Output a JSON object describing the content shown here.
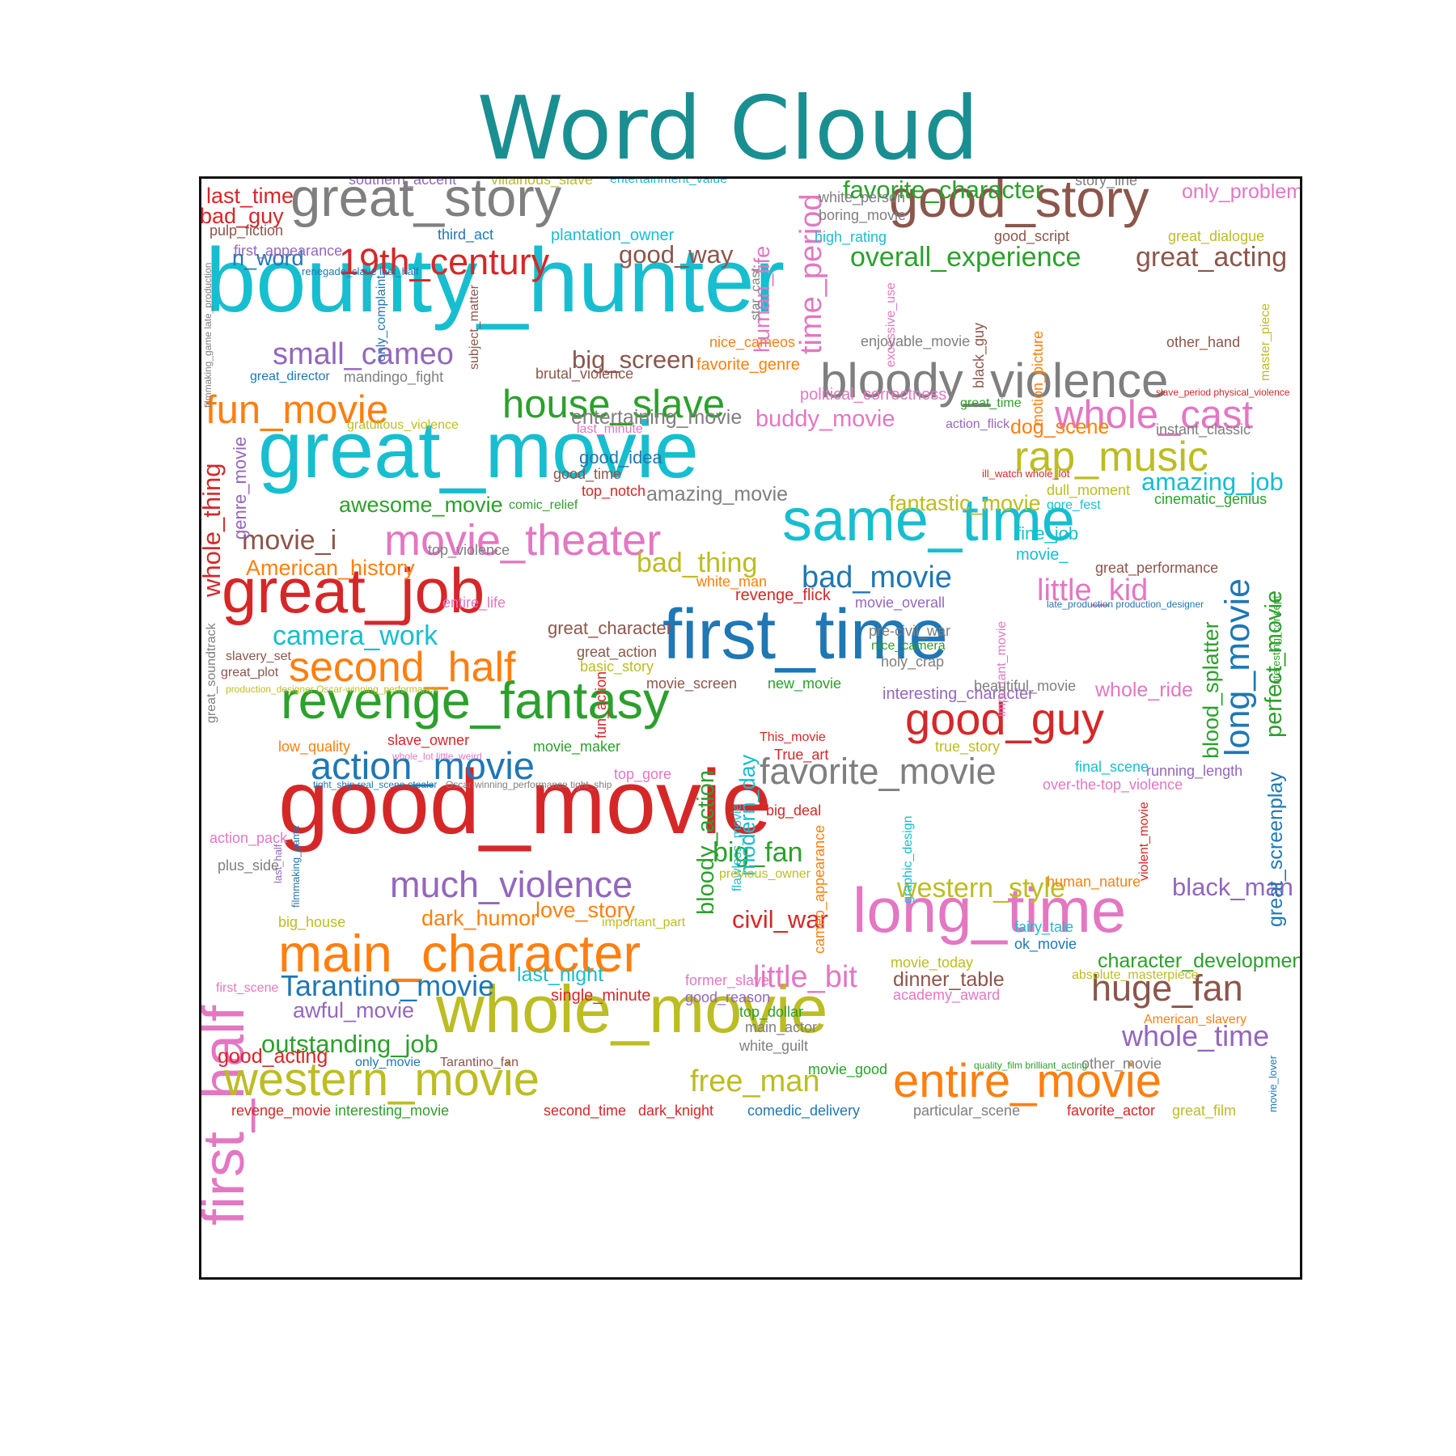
{
  "title": "Word Cloud",
  "palette": {
    "red": "#d62728",
    "blue": "#1f77b4",
    "cyan": "#17becf",
    "olive": "#bcbd22",
    "green": "#2ca02c",
    "orange": "#ff7f0e",
    "pink": "#e377c2",
    "purple": "#9467bd",
    "brown": "#8c564b",
    "gray": "#7f7f7f",
    "teal": "#1a8f91"
  },
  "words": [
    {
      "text": "bounty_hunter",
      "size": 100,
      "color": "cyan"
    },
    {
      "text": "good_movie",
      "size": 100,
      "color": "red"
    },
    {
      "text": "great_movie",
      "size": 88,
      "color": "cyan"
    },
    {
      "text": "first_time",
      "size": 78,
      "color": "blue"
    },
    {
      "text": "whole_movie",
      "size": 74,
      "color": "olive"
    },
    {
      "text": "great_job",
      "size": 70,
      "color": "red"
    },
    {
      "text": "long_time",
      "size": 70,
      "color": "pink"
    },
    {
      "text": "same_time",
      "size": 66,
      "color": "cyan"
    },
    {
      "text": "first_half",
      "size": 64,
      "color": "pink",
      "vertical": true
    },
    {
      "text": "great_story",
      "size": 60,
      "color": "gray"
    },
    {
      "text": "good_story",
      "size": 58,
      "color": "brown"
    },
    {
      "text": "revenge_fantasy",
      "size": 58,
      "color": "green"
    },
    {
      "text": "main_character",
      "size": 58,
      "color": "orange"
    },
    {
      "text": "bloody_violence",
      "size": 54,
      "color": "gray"
    },
    {
      "text": "western_movie",
      "size": 52,
      "color": "olive"
    },
    {
      "text": "entire_movie",
      "size": 52,
      "color": "orange"
    },
    {
      "text": "good_guy",
      "size": 50,
      "color": "red"
    },
    {
      "text": "movie_theater",
      "size": 48,
      "color": "pink"
    },
    {
      "text": "second_half",
      "size": 46,
      "color": "orange"
    },
    {
      "text": "rap_music",
      "size": 46,
      "color": "olive"
    },
    {
      "text": "house_slave",
      "size": 44,
      "color": "green"
    },
    {
      "text": "fun_movie",
      "size": 44,
      "color": "orange"
    },
    {
      "text": "whole_cast",
      "size": 44,
      "color": "pink"
    },
    {
      "text": "action_movie",
      "size": 42,
      "color": "blue"
    },
    {
      "text": "favorite_movie",
      "size": 40,
      "color": "gray"
    },
    {
      "text": "huge_fan",
      "size": 40,
      "color": "brown"
    },
    {
      "text": "much_violence",
      "size": 40,
      "color": "purple"
    },
    {
      "text": "19th_century",
      "size": 40,
      "color": "red"
    },
    {
      "text": "long_movie",
      "size": 38,
      "color": "blue",
      "vertical": true
    },
    {
      "text": "time_period",
      "size": 34,
      "color": "pink",
      "vertical": true
    },
    {
      "text": "small_cameo",
      "size": 34,
      "color": "purple"
    },
    {
      "text": "free_man",
      "size": 34,
      "color": "olive"
    },
    {
      "text": "little_bit",
      "size": 34,
      "color": "pink"
    },
    {
      "text": "little_kid",
      "size": 34,
      "color": "pink"
    },
    {
      "text": "bad_movie",
      "size": 34,
      "color": "blue"
    },
    {
      "text": "whole_time",
      "size": 32,
      "color": "purple"
    },
    {
      "text": "Tarantino_movie",
      "size": 32,
      "color": "blue"
    },
    {
      "text": "western_style",
      "size": 30,
      "color": "olive"
    },
    {
      "text": "camera_work",
      "size": 30,
      "color": "cyan"
    },
    {
      "text": "overall_experience",
      "size": 30,
      "color": "green"
    },
    {
      "text": "great_acting",
      "size": 30,
      "color": "brown"
    },
    {
      "text": "bad_thing",
      "size": 30,
      "color": "olive"
    },
    {
      "text": "big_fan",
      "size": 30,
      "color": "green"
    },
    {
      "text": "civil_war",
      "size": 28,
      "color": "red"
    },
    {
      "text": "black_man",
      "size": 28,
      "color": "purple"
    },
    {
      "text": "movie_i",
      "size": 30,
      "color": "brown"
    },
    {
      "text": "whole_thing",
      "size": 28,
      "color": "red",
      "vertical": true
    },
    {
      "text": "perfect_movie",
      "size": 26,
      "color": "green",
      "vertical": true
    },
    {
      "text": "outstanding_job",
      "size": 28,
      "color": "green"
    },
    {
      "text": "big_screen",
      "size": 28,
      "color": "brown"
    },
    {
      "text": "good_way",
      "size": 28,
      "color": "brown"
    },
    {
      "text": "favorite_character",
      "size": 28,
      "color": "green"
    },
    {
      "text": "bloody_action",
      "size": 26,
      "color": "green",
      "vertical": true
    },
    {
      "text": "blood_splatter",
      "size": 24,
      "color": "green",
      "vertical": true
    },
    {
      "text": "human_life",
      "size": 24,
      "color": "pink",
      "vertical": true
    },
    {
      "text": "modern_day",
      "size": 24,
      "color": "cyan",
      "vertical": true
    },
    {
      "text": "great_screenplay",
      "size": 22,
      "color": "blue",
      "vertical": true
    },
    {
      "text": "amazing_job",
      "size": 28,
      "color": "cyan"
    },
    {
      "text": "dark_humor",
      "size": 24,
      "color": "orange"
    },
    {
      "text": "love_story",
      "size": 24,
      "color": "orange"
    },
    {
      "text": "awful_movie",
      "size": 24,
      "color": "purple"
    },
    {
      "text": "awesome_movie",
      "size": 24,
      "color": "green"
    },
    {
      "text": "buddy_movie",
      "size": 26,
      "color": "pink"
    },
    {
      "text": "fantastic_movie",
      "size": 24,
      "color": "olive"
    },
    {
      "text": "American_history",
      "size": 24,
      "color": "orange"
    },
    {
      "text": "character_development",
      "size": 22,
      "color": "green"
    },
    {
      "text": "good_acting",
      "size": 22,
      "color": "red"
    },
    {
      "text": "n_word",
      "size": 24,
      "color": "blue"
    },
    {
      "text": "last_time",
      "size": 24,
      "color": "red"
    },
    {
      "text": "bad_guy",
      "size": 24,
      "color": "red"
    },
    {
      "text": "last_night",
      "size": 22,
      "color": "cyan"
    },
    {
      "text": "entertaining_movie",
      "size": 22,
      "color": "gray"
    },
    {
      "text": "dinner_table",
      "size": 22,
      "color": "brown"
    },
    {
      "text": "only_problem",
      "size": 22,
      "color": "pink"
    },
    {
      "text": "whole_ride",
      "size": 22,
      "color": "pink"
    },
    {
      "text": "dog_scene",
      "size": 22,
      "color": "orange"
    },
    {
      "text": "good_idea",
      "size": 20,
      "color": "blue"
    },
    {
      "text": "great_character",
      "size": 20,
      "color": "brown"
    },
    {
      "text": "amazing_movie",
      "size": 22,
      "color": "gray"
    },
    {
      "text": "single_minute",
      "size": 18,
      "color": "red"
    },
    {
      "text": "genre_movie",
      "size": 20,
      "color": "purple",
      "vertical": true
    },
    {
      "text": "house_slave",
      "size": 18,
      "color": "green",
      "hidden": true
    },
    {
      "text": "fine_job",
      "size": 20,
      "color": "cyan"
    },
    {
      "text": "favorite_genre",
      "size": 18,
      "color": "orange"
    },
    {
      "text": "political_correctness",
      "size": 18,
      "color": "pink"
    },
    {
      "text": "interesting_character",
      "size": 18,
      "color": "purple"
    },
    {
      "text": "cameo_appearance",
      "size": 16,
      "color": "orange",
      "vertical": true
    },
    {
      "text": "revenge_flick",
      "size": 18,
      "color": "red"
    },
    {
      "text": "top_notch",
      "size": 16,
      "color": "red"
    },
    {
      "text": "story_line",
      "size": 16,
      "color": "gray"
    },
    {
      "text": "white_person",
      "size": 16,
      "color": "gray"
    },
    {
      "text": "boring_movie",
      "size": 16,
      "color": "gray"
    },
    {
      "text": "great_time",
      "size": 14,
      "color": "green"
    },
    {
      "text": "fun_action",
      "size": 16,
      "color": "red",
      "vertical": true
    },
    {
      "text": "graphic_design",
      "size": 14,
      "color": "cyan",
      "vertical": true
    },
    {
      "text": "violent_movie",
      "size": 14,
      "color": "red",
      "vertical": true
    },
    {
      "text": "high_rating",
      "size": 16,
      "color": "cyan"
    },
    {
      "text": "third_act",
      "size": 16,
      "color": "blue"
    },
    {
      "text": "plantation_owner",
      "size": 18,
      "color": "cyan"
    },
    {
      "text": "southern_accent",
      "size": 16,
      "color": "purple"
    },
    {
      "text": "villainous_slave",
      "size": 16,
      "color": "olive"
    },
    {
      "text": "entertainment_value",
      "size": 14,
      "color": "cyan"
    },
    {
      "text": "good_script",
      "size": 16,
      "color": "brown"
    },
    {
      "text": "great_dialogue",
      "size": 16,
      "color": "olive"
    },
    {
      "text": "pulp_fiction",
      "size": 16,
      "color": "brown"
    },
    {
      "text": "first_appearance",
      "size": 16,
      "color": "purple"
    },
    {
      "text": "renegade_slave last_half",
      "size": 12,
      "color": "blue"
    },
    {
      "text": "filmmaking_game late_production",
      "size": 11,
      "color": "gray",
      "vertical": true
    },
    {
      "text": "only_complaint",
      "size": 14,
      "color": "blue",
      "vertical": true
    },
    {
      "text": "subject_matter",
      "size": 14,
      "color": "brown",
      "vertical": true
    },
    {
      "text": "star_cast",
      "size": 14,
      "color": "gray",
      "vertical": true
    },
    {
      "text": "excessive_use",
      "size": 14,
      "color": "pink",
      "vertical": true
    },
    {
      "text": "black_guy",
      "size": 16,
      "color": "brown",
      "vertical": true
    },
    {
      "text": "motion_picture",
      "size": 16,
      "color": "orange",
      "vertical": true
    },
    {
      "text": "master_piece",
      "size": 14,
      "color": "olive",
      "vertical": true
    },
    {
      "text": "nice_cameos",
      "size": 16,
      "color": "orange"
    },
    {
      "text": "enjoyable_movie",
      "size": 16,
      "color": "gray"
    },
    {
      "text": "other_hand",
      "size": 16,
      "color": "brown"
    },
    {
      "text": "great_director",
      "size": 14,
      "color": "blue"
    },
    {
      "text": "mandingo_fight",
      "size": 16,
      "color": "gray"
    },
    {
      "text": "brutal_violence",
      "size": 16,
      "color": "brown"
    },
    {
      "text": "slave_period physical_violence",
      "size": 11,
      "color": "red"
    },
    {
      "text": "gratuitous_violence",
      "size": 14,
      "color": "olive"
    },
    {
      "text": "action_flick",
      "size": 14,
      "color": "purple"
    },
    {
      "text": "last_minute",
      "size": 14,
      "color": "pink"
    },
    {
      "text": "instant_classic",
      "size": 16,
      "color": "gray"
    },
    {
      "text": "good_time",
      "size": 16,
      "color": "brown"
    },
    {
      "text": "ill_watch whole_lot",
      "size": 12,
      "color": "red"
    },
    {
      "text": "dull_moment",
      "size": 16,
      "color": "olive"
    },
    {
      "text": "comic_relief",
      "size": 14,
      "color": "green"
    },
    {
      "text": "gore_fest",
      "size": 14,
      "color": "cyan"
    },
    {
      "text": "cinematic_genius",
      "size": 16,
      "color": "green"
    },
    {
      "text": "top_violence",
      "size": 16,
      "color": "gray"
    },
    {
      "text": "movie_",
      "size": 18,
      "color": "cyan"
    },
    {
      "text": "great_performance",
      "size": 16,
      "color": "brown"
    },
    {
      "text": "white_man",
      "size": 16,
      "color": "orange"
    },
    {
      "text": "entire_life",
      "size": 16,
      "color": "pink"
    },
    {
      "text": "movie_overall",
      "size": 16,
      "color": "purple"
    },
    {
      "text": "important_movie",
      "size": 14,
      "color": "pink",
      "vertical": true
    },
    {
      "text": "late_production production_designer",
      "size": 11,
      "color": "blue"
    },
    {
      "text": "interesting_concept",
      "size": 12,
      "color": "green",
      "vertical": true
    },
    {
      "text": "great_soundtrack",
      "size": 14,
      "color": "gray",
      "vertical": true
    },
    {
      "text": "slavery_set",
      "size": 14,
      "color": "brown"
    },
    {
      "text": "great_plot",
      "size": 14,
      "color": "brown"
    },
    {
      "text": "production_designer Oscar-winning_performance",
      "size": 11,
      "color": "olive"
    },
    {
      "text": "great_action",
      "size": 16,
      "color": "brown"
    },
    {
      "text": "basic_story",
      "size": 16,
      "color": "olive"
    },
    {
      "text": "pre-civil_war",
      "size": 16,
      "color": "gray"
    },
    {
      "text": "nice_camera",
      "size": 14,
      "color": "green"
    },
    {
      "text": "holy_crap",
      "size": 16,
      "color": "gray"
    },
    {
      "text": "movie_screen",
      "size": 16,
      "color": "brown"
    },
    {
      "text": "new_movie",
      "size": 16,
      "color": "green"
    },
    {
      "text": "beautiful_movie",
      "size": 16,
      "color": "gray"
    },
    {
      "text": "low_quality",
      "size": 16,
      "color": "orange"
    },
    {
      "text": "slave_owner",
      "size": 16,
      "color": "red"
    },
    {
      "text": "whole_lot little_weird",
      "size": 11,
      "color": "pink"
    },
    {
      "text": "movie_maker",
      "size": 16,
      "color": "green"
    },
    {
      "text": "This_movie",
      "size": 14,
      "color": "red"
    },
    {
      "text": "True_art",
      "size": 16,
      "color": "red"
    },
    {
      "text": "true_story",
      "size": 16,
      "color": "olive"
    },
    {
      "text": "flawless_movie",
      "size": 14,
      "color": "cyan",
      "vertical": true
    },
    {
      "text": "top_gore",
      "size": 16,
      "color": "pink"
    },
    {
      "text": "final_scene",
      "size": 16,
      "color": "cyan"
    },
    {
      "text": "running_length",
      "size": 16,
      "color": "purple"
    },
    {
      "text": "over-the-top_violence",
      "size": 16,
      "color": "pink"
    },
    {
      "text": "tight_ship real_scene-stealer",
      "size": 11,
      "color": "blue"
    },
    {
      "text": "Oscar-winning_performance tight_ship",
      "size": 11,
      "color": "gray"
    },
    {
      "text": "filmmaking_game",
      "size": 12,
      "color": "blue",
      "vertical": true
    },
    {
      "text": "last_half",
      "size": 12,
      "color": "purple",
      "vertical": true
    },
    {
      "text": "big_deal",
      "size": 16,
      "color": "red"
    },
    {
      "text": "action_pack",
      "size": 16,
      "color": "pink"
    },
    {
      "text": "plus_side",
      "size": 16,
      "color": "gray"
    },
    {
      "text": "previous_owner",
      "size": 14,
      "color": "olive"
    },
    {
      "text": "human_nature",
      "size": 16,
      "color": "orange"
    },
    {
      "text": "big_house",
      "size": 16,
      "color": "olive"
    },
    {
      "text": "important_part",
      "size": 14,
      "color": "olive"
    },
    {
      "text": "fairy_tale",
      "size": 16,
      "color": "cyan"
    },
    {
      "text": "ok_movie",
      "size": 16,
      "color": "blue"
    },
    {
      "text": "movie_today",
      "size": 16,
      "color": "olive"
    },
    {
      "text": "absolute_masterpiece",
      "size": 14,
      "color": "olive"
    },
    {
      "text": "first_scene",
      "size": 14,
      "color": "pink"
    },
    {
      "text": "former_slave",
      "size": 16,
      "color": "pink"
    },
    {
      "text": "good_reason",
      "size": 16,
      "color": "purple"
    },
    {
      "text": "academy_award",
      "size": 16,
      "color": "pink"
    },
    {
      "text": "top_dollar",
      "size": 16,
      "color": "green"
    },
    {
      "text": "main_actor",
      "size": 16,
      "color": "gray"
    },
    {
      "text": "American_slavery",
      "size": 14,
      "color": "orange"
    },
    {
      "text": "white_guilt",
      "size": 16,
      "color": "gray"
    },
    {
      "text": "only_movie",
      "size": 14,
      "color": "blue"
    },
    {
      "text": "Tarantino_fan",
      "size": 14,
      "color": "brown"
    },
    {
      "text": "movie_good",
      "size": 16,
      "color": "green"
    },
    {
      "text": "quality_film brilliant_acting",
      "size": 11,
      "color": "green"
    },
    {
      "text": "other_movie",
      "size": 16,
      "color": "gray"
    },
    {
      "text": "movie_lover",
      "size": 12,
      "color": "blue",
      "vertical": true
    },
    {
      "text": "revenge_movie",
      "size": 16,
      "color": "red"
    },
    {
      "text": "interesting_movie",
      "size": 16,
      "color": "green"
    },
    {
      "text": "second_time",
      "size": 16,
      "color": "red"
    },
    {
      "text": "dark_knight",
      "size": 16,
      "color": "red"
    },
    {
      "text": "comedic_delivery",
      "size": 16,
      "color": "blue"
    },
    {
      "text": "particular_scene",
      "size": 16,
      "color": "gray"
    },
    {
      "text": "favorite_actor",
      "size": 16,
      "color": "red"
    },
    {
      "text": "great_film",
      "size": 16,
      "color": "olive"
    }
  ]
}
